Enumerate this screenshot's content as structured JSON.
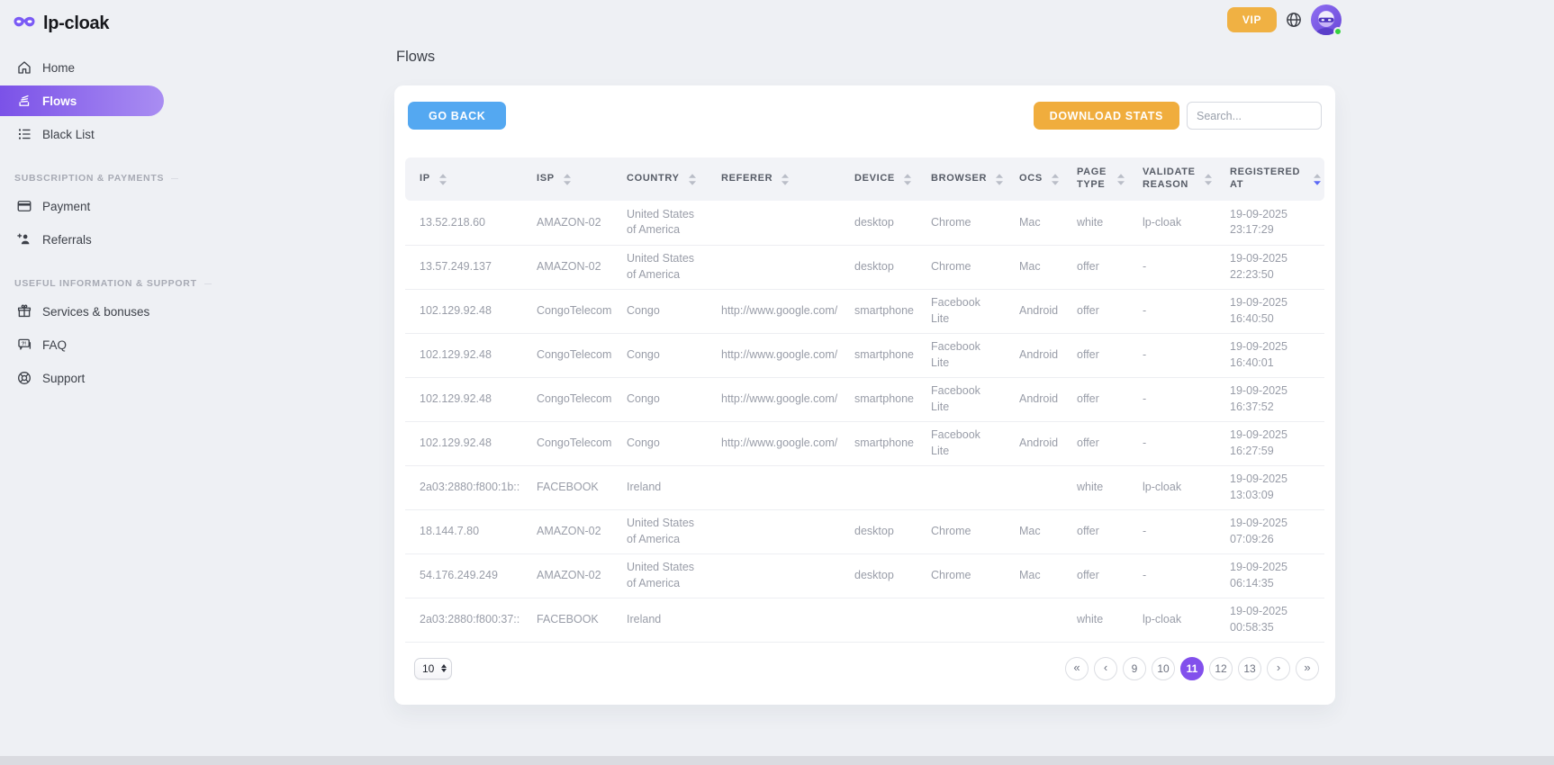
{
  "brand": {
    "name": "lp-cloak",
    "logo_icon": "mask-icon"
  },
  "header": {
    "vip_label": "VIP",
    "globe_icon": "globe-icon",
    "avatar_status": "online"
  },
  "sidebar": {
    "sections": [
      {
        "title": "",
        "items": [
          {
            "icon": "home-icon",
            "label": "Home",
            "active": false
          },
          {
            "icon": "flows-icon",
            "label": "Flows",
            "active": true
          },
          {
            "icon": "blacklist-icon",
            "label": "Black List",
            "active": false
          }
        ]
      },
      {
        "title": "Subscription & payments",
        "items": [
          {
            "icon": "payment-icon",
            "label": "Payment",
            "active": false
          },
          {
            "icon": "referrals-icon",
            "label": "Referrals",
            "active": false
          }
        ]
      },
      {
        "title": "Useful information & support",
        "items": [
          {
            "icon": "gift-icon",
            "label": "Services & bonuses",
            "active": false
          },
          {
            "icon": "faq-icon",
            "label": "FAQ",
            "active": false
          },
          {
            "icon": "support-icon",
            "label": "Support",
            "active": false
          }
        ]
      }
    ]
  },
  "page": {
    "title": "Flows"
  },
  "toolbar": {
    "go_back_label": "GO BACK",
    "download_stats_label": "DOWNLOAD STATS",
    "search_placeholder": "Search...",
    "search_value": ""
  },
  "table": {
    "columns": [
      {
        "label": "IP",
        "key": "ip",
        "sort": null
      },
      {
        "label": "ISP",
        "key": "isp",
        "sort": null
      },
      {
        "label": "COUNTRY",
        "key": "country",
        "sort": null
      },
      {
        "label": "REFERER",
        "key": "referer",
        "sort": null
      },
      {
        "label": "DEVICE",
        "key": "device",
        "sort": null
      },
      {
        "label": "BROWSER",
        "key": "browser",
        "sort": null
      },
      {
        "label": "OCS",
        "key": "ocs",
        "sort": null
      },
      {
        "label": "PAGE TYPE",
        "key": "page_type",
        "sort": null
      },
      {
        "label": "VALIDATE REASON",
        "key": "validate_reason",
        "sort": null
      },
      {
        "label": "REGISTERED AT",
        "key": "registered",
        "sort": "desc"
      }
    ],
    "rows": [
      {
        "ip": "13.52.218.60",
        "isp": "AMAZON-02",
        "country": "United States of America",
        "referer": "",
        "device": "desktop",
        "browser": "Chrome",
        "ocs": "Mac",
        "page_type": "white",
        "validate_reason": "lp-cloak",
        "registered_date": "19-09-2025",
        "registered_time": "23:17:29"
      },
      {
        "ip": "13.57.249.137",
        "isp": "AMAZON-02",
        "country": "United States of America",
        "referer": "",
        "device": "desktop",
        "browser": "Chrome",
        "ocs": "Mac",
        "page_type": "offer",
        "validate_reason": "-",
        "registered_date": "19-09-2025",
        "registered_time": "22:23:50"
      },
      {
        "ip": "102.129.92.48",
        "isp": "CongoTelecom",
        "country": "Congo",
        "referer": "http://www.google.com/",
        "device": "smartphone",
        "browser": "Facebook Lite",
        "ocs": "Android",
        "page_type": "offer",
        "validate_reason": "-",
        "registered_date": "19-09-2025",
        "registered_time": "16:40:50"
      },
      {
        "ip": "102.129.92.48",
        "isp": "CongoTelecom",
        "country": "Congo",
        "referer": "http://www.google.com/",
        "device": "smartphone",
        "browser": "Facebook Lite",
        "ocs": "Android",
        "page_type": "offer",
        "validate_reason": "-",
        "registered_date": "19-09-2025",
        "registered_time": "16:40:01"
      },
      {
        "ip": "102.129.92.48",
        "isp": "CongoTelecom",
        "country": "Congo",
        "referer": "http://www.google.com/",
        "device": "smartphone",
        "browser": "Facebook Lite",
        "ocs": "Android",
        "page_type": "offer",
        "validate_reason": "-",
        "registered_date": "19-09-2025",
        "registered_time": "16:37:52"
      },
      {
        "ip": "102.129.92.48",
        "isp": "CongoTelecom",
        "country": "Congo",
        "referer": "http://www.google.com/",
        "device": "smartphone",
        "browser": "Facebook Lite",
        "ocs": "Android",
        "page_type": "offer",
        "validate_reason": "-",
        "registered_date": "19-09-2025",
        "registered_time": "16:27:59"
      },
      {
        "ip": "2a03:2880:f800:1b::",
        "isp": "FACEBOOK",
        "country": "Ireland",
        "referer": "",
        "device": "",
        "browser": "",
        "ocs": "",
        "page_type": "white",
        "validate_reason": "lp-cloak",
        "registered_date": "19-09-2025",
        "registered_time": "13:03:09"
      },
      {
        "ip": "18.144.7.80",
        "isp": "AMAZON-02",
        "country": "United States of America",
        "referer": "",
        "device": "desktop",
        "browser": "Chrome",
        "ocs": "Mac",
        "page_type": "offer",
        "validate_reason": "-",
        "registered_date": "19-09-2025",
        "registered_time": "07:09:26"
      },
      {
        "ip": "54.176.249.249",
        "isp": "AMAZON-02",
        "country": "United States of America",
        "referer": "",
        "device": "desktop",
        "browser": "Chrome",
        "ocs": "Mac",
        "page_type": "offer",
        "validate_reason": "-",
        "registered_date": "19-09-2025",
        "registered_time": "06:14:35"
      },
      {
        "ip": "2a03:2880:f800:37::",
        "isp": "FACEBOOK",
        "country": "Ireland",
        "referer": "",
        "device": "",
        "browser": "",
        "ocs": "",
        "page_type": "white",
        "validate_reason": "lp-cloak",
        "registered_date": "19-09-2025",
        "registered_time": "00:58:35"
      }
    ]
  },
  "pagination": {
    "page_size": "10",
    "first_label": "«",
    "prev_label": "‹",
    "next_label": "›",
    "last_label": "»",
    "pages": [
      "9",
      "10",
      "11",
      "12",
      "13"
    ],
    "active_page": "11"
  },
  "colors": {
    "accent_purple": "#8250ec",
    "active_item_gradient_start": "#7b52e8",
    "active_item_gradient_end": "#a98df2",
    "go_back_blue": "#54a8f1",
    "download_orange": "#f0ad3d",
    "vip_orange": "#f0b143",
    "status_green": "#35d23f",
    "sort_active": "#5b68f5"
  }
}
